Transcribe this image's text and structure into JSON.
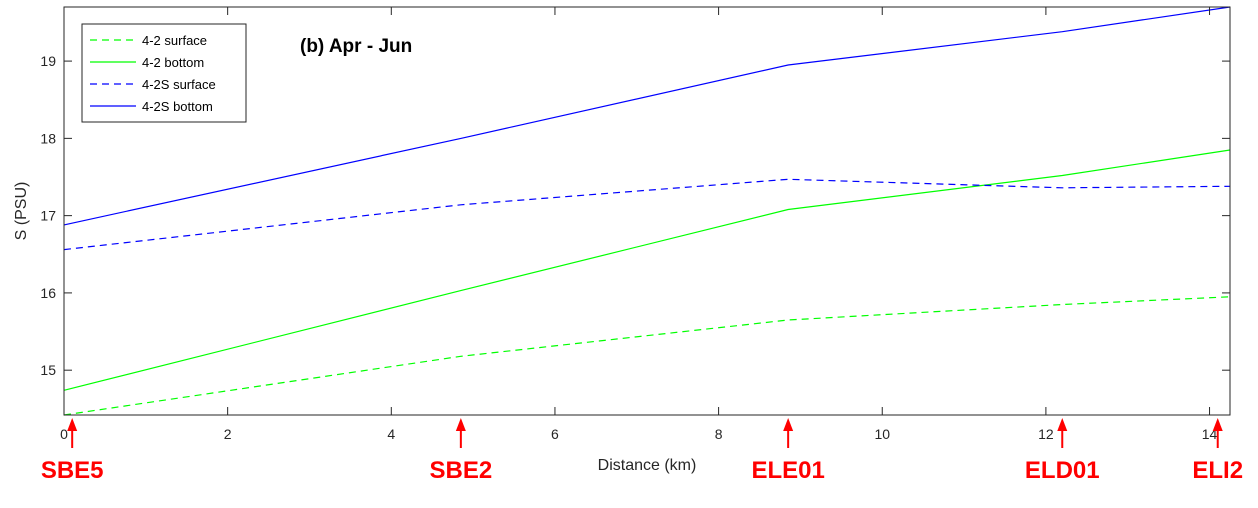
{
  "chart_data": {
    "type": "line",
    "title": "(b) Apr - Jun",
    "xlabel": "Distance (km)",
    "ylabel": "S (PSU)",
    "xlim": [
      0,
      14.25
    ],
    "ylim": [
      14.42,
      19.7
    ],
    "xticks": [
      0,
      2,
      4,
      6,
      8,
      10,
      12,
      14
    ],
    "yticks": [
      15,
      16,
      17,
      18,
      19
    ],
    "grid": false,
    "legend_position": "top-left",
    "series": [
      {
        "name": "4-2 surface",
        "color": "#00ff00",
        "dash": "dashed",
        "x": [
          0,
          4.85,
          8.85,
          12.2,
          14.25
        ],
        "y": [
          14.42,
          15.18,
          15.65,
          15.85,
          15.95
        ]
      },
      {
        "name": "4-2 bottom",
        "color": "#00ff00",
        "dash": "solid",
        "x": [
          0,
          4.85,
          8.85,
          12.2,
          14.25
        ],
        "y": [
          14.74,
          16.03,
          17.08,
          17.52,
          17.85
        ]
      },
      {
        "name": "4-2S surface",
        "color": "#0000ff",
        "dash": "dashed",
        "x": [
          0,
          4.85,
          8.85,
          12.2,
          14.25
        ],
        "y": [
          16.56,
          17.14,
          17.47,
          17.36,
          17.38
        ]
      },
      {
        "name": "4-2S bottom",
        "color": "#0000ff",
        "dash": "solid",
        "x": [
          0,
          4.85,
          8.85,
          12.2,
          14.25
        ],
        "y": [
          16.88,
          18.0,
          18.95,
          19.38,
          19.7
        ]
      }
    ],
    "station_markers": [
      {
        "label": "SBE5",
        "x": 0.1
      },
      {
        "label": "SBE2",
        "x": 4.85
      },
      {
        "label": "ELE01",
        "x": 8.85
      },
      {
        "label": "ELD01",
        "x": 12.2
      },
      {
        "label": "ELI2",
        "x": 14.1
      }
    ],
    "marker_color": "#ff0000"
  }
}
